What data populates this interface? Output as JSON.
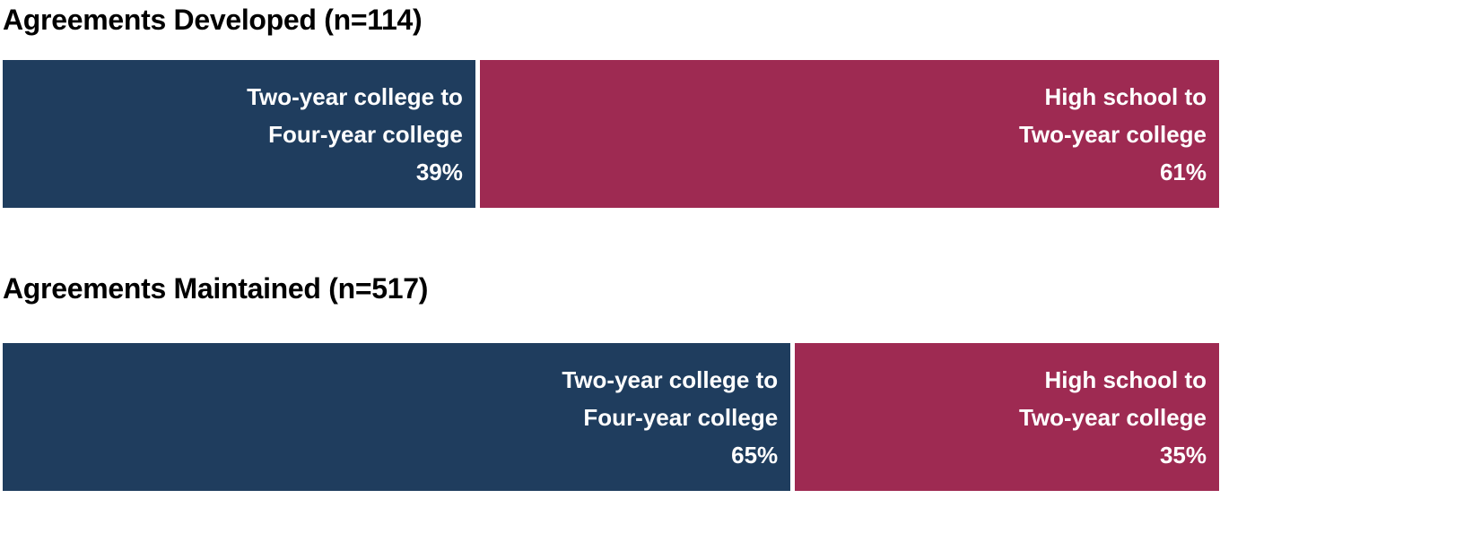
{
  "chart_data": {
    "type": "bar",
    "subtype": "horizontal-100pct-stacked",
    "orientation": "horizontal",
    "legend_position": "none",
    "grid": false,
    "axes_visible": false,
    "categories": [
      "Two-year college to Four-year college",
      "High school to Two-year college"
    ],
    "colors": {
      "two_year_to_four_year": "#1F3D5E",
      "high_school_to_two_year": "#9E2A52",
      "label_text": "#ffffff",
      "title_text": "#000000"
    },
    "bars": [
      {
        "title": "Agreements Developed (n=114)",
        "n": 114,
        "segments": [
          {
            "name": "Two-year college to Four-year college",
            "value": 39,
            "label_lines": [
              "Two-year college to",
              "Four-year college"
            ],
            "pct_label": "39%",
            "color": "#1F3D5E"
          },
          {
            "name": "High school to Two-year college",
            "value": 61,
            "label_lines": [
              "High school to",
              "Two-year college"
            ],
            "pct_label": "61%",
            "color": "#9E2A52"
          }
        ]
      },
      {
        "title": "Agreements Maintained (n=517)",
        "n": 517,
        "segments": [
          {
            "name": "Two-year college to Four-year college",
            "value": 65,
            "label_lines": [
              "Two-year college to",
              "Four-year college"
            ],
            "pct_label": "65%",
            "color": "#1F3D5E"
          },
          {
            "name": "High school to Two-year college",
            "value": 35,
            "label_lines": [
              "High school to",
              "Two-year college"
            ],
            "pct_label": "35%",
            "color": "#9E2A52"
          }
        ]
      }
    ]
  }
}
